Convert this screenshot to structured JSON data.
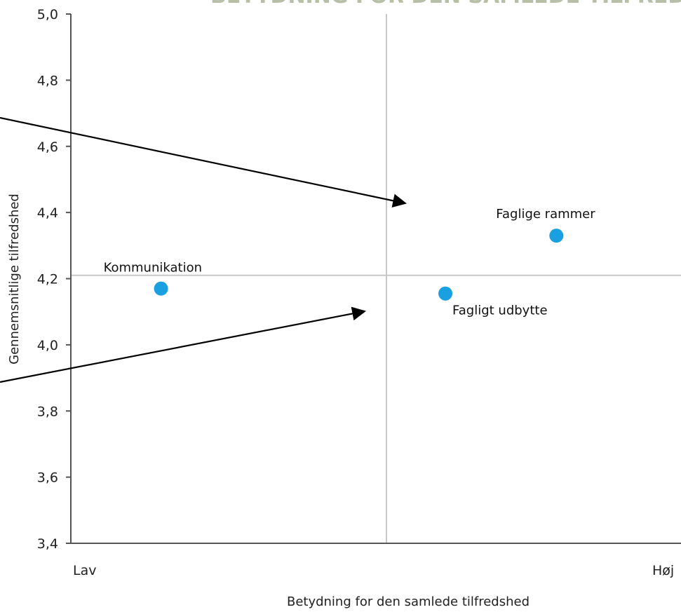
{
  "chart_data": {
    "type": "scatter",
    "title": "BETYDNING FOR DEN SAMLEDE TILFREDSHED",
    "xlabel": "Betydning for den samlede tilfredshed",
    "ylabel": "Gennemsnitlige tilfredshed",
    "x_tick_labels": [
      "Lav",
      "Høj"
    ],
    "xlim": [
      0,
      1
    ],
    "ylim": [
      3.4,
      5.0
    ],
    "y_ticks": [
      3.4,
      3.6,
      3.8,
      4.0,
      4.2,
      4.4,
      4.6,
      4.8,
      5.0
    ],
    "y_tick_labels": [
      "3,4",
      "3,6",
      "3,8",
      "4,0",
      "4,2",
      "4,4",
      "4,6",
      "4,8",
      "5,0"
    ],
    "quadrant_lines": {
      "x": 0.455,
      "y": 4.21
    },
    "grid": false,
    "point_color": "#1aa0e0",
    "points": [
      {
        "label": "Kommunikation",
        "x": 0.13,
        "y": 4.17
      },
      {
        "label": "Fagligt udbytte",
        "x": 0.54,
        "y": 4.155
      },
      {
        "label": "Faglige rammer",
        "x": 0.7,
        "y": 4.33
      }
    ]
  }
}
